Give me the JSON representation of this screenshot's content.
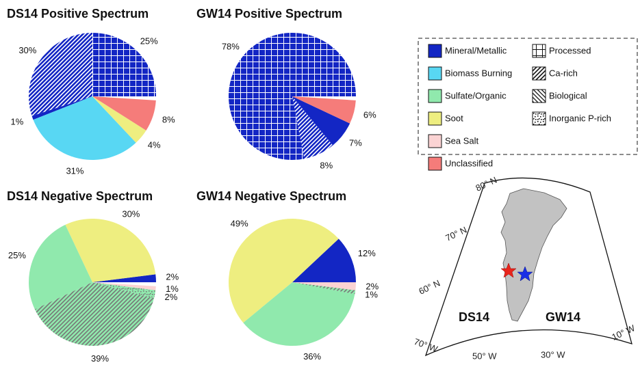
{
  "chart_data": [
    {
      "type": "pie",
      "title": "DS14 Positive Spectrum",
      "values": [
        25,
        30,
        1,
        31,
        4,
        8
      ],
      "value_labels": [
        "25%",
        "30%",
        "1%",
        "31%",
        "4%",
        "8%"
      ],
      "colors": [
        "#1326c4",
        "#1326c4",
        "#1326c4",
        "#58d7f3",
        "#eeee80",
        "#f57c7a"
      ],
      "patterns": [
        "grid",
        "diag",
        null,
        null,
        null,
        null
      ]
    },
    {
      "type": "pie",
      "title": "GW14 Positive Spectrum",
      "values": [
        78,
        8,
        7,
        6
      ],
      "value_labels": [
        "78%",
        "8%",
        "7%",
        "6%"
      ],
      "colors": [
        "#1326c4",
        "#1326c4",
        "#1326c4",
        "#f57c7a"
      ],
      "patterns": [
        "grid",
        "diag",
        null,
        null
      ]
    },
    {
      "type": "pie",
      "title": "DS14 Negative Spectrum",
      "values": [
        2,
        30,
        25,
        39,
        2,
        1
      ],
      "value_labels": [
        "2%",
        "30%",
        "25%",
        "39%",
        "2%",
        "1%"
      ],
      "colors": [
        "#1326c4",
        "#eeee80",
        "#90e9ad",
        "#90e9ad",
        "#90e9ad",
        "#fbd3d3"
      ],
      "patterns": [
        null,
        null,
        null,
        "diag",
        "dots",
        null
      ]
    },
    {
      "type": "pie",
      "title": "GW14 Negative Spectrum",
      "values": [
        12,
        49,
        36,
        1,
        2
      ],
      "value_labels": [
        "12%",
        "49%",
        "36%",
        "1%",
        "2%"
      ],
      "colors": [
        "#1326c4",
        "#eeee80",
        "#90e9ad",
        "#90e9ad",
        "#fbd3d3"
      ],
      "patterns": [
        null,
        null,
        null,
        "diag",
        null
      ]
    }
  ],
  "legend": {
    "items": [
      {
        "name": "Mineral/Metallic",
        "color": "#1326c4"
      },
      {
        "name": "Biomass Burning",
        "color": "#58d7f3"
      },
      {
        "name": "Sulfate/Organic",
        "color": "#90e9ad"
      },
      {
        "name": "Soot",
        "color": "#eeee80"
      },
      {
        "name": "Sea Salt",
        "color": "#fbd3d3"
      },
      {
        "name": "Unclassified",
        "color": "#f57c7a"
      },
      {
        "name": "Processed",
        "pattern": "grid"
      },
      {
        "name": "Ca-rich",
        "pattern": "diag"
      },
      {
        "name": "Biological",
        "pattern": "backdiag"
      },
      {
        "name": "Inorganic P-rich",
        "pattern": "dots"
      }
    ]
  },
  "map": {
    "lat_labels": [
      "80° N",
      "70° N",
      "60° N"
    ],
    "lon_labels": [
      "70° W",
      "50° W",
      "30° W",
      "10° W"
    ],
    "sites": [
      {
        "name": "DS14",
        "color": "#e8251c"
      },
      {
        "name": "GW14",
        "color": "#1a2ee6"
      }
    ]
  }
}
